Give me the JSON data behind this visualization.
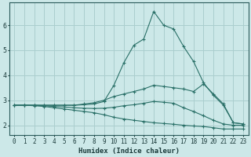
{
  "xlabel": "Humidex (Indice chaleur)",
  "bg_color": "#cce8e8",
  "grid_color": "#aacece",
  "line_color": "#2a7068",
  "xlim": [
    -0.5,
    23.5
  ],
  "ylim": [
    1.6,
    6.9
  ],
  "xticks": [
    0,
    1,
    2,
    3,
    4,
    5,
    6,
    7,
    8,
    9,
    10,
    11,
    12,
    13,
    14,
    15,
    16,
    17,
    18,
    19,
    20,
    21,
    22,
    23
  ],
  "yticks": [
    2,
    3,
    4,
    5,
    6
  ],
  "series": [
    {
      "x": [
        0,
        1,
        2,
        3,
        4,
        5,
        6,
        7,
        8,
        9,
        10,
        11,
        12,
        13,
        14,
        15,
        16,
        17,
        18,
        19,
        20,
        21,
        22,
        23
      ],
      "y": [
        2.8,
        2.8,
        2.8,
        2.8,
        2.8,
        2.8,
        2.8,
        2.82,
        2.85,
        2.95,
        3.6,
        4.5,
        5.2,
        5.45,
        6.55,
        6.0,
        5.85,
        5.15,
        4.55,
        3.7,
        3.2,
        2.8,
        2.1,
        2.05
      ]
    },
    {
      "x": [
        0,
        1,
        2,
        3,
        4,
        5,
        6,
        7,
        8,
        9,
        10,
        11,
        12,
        13,
        14,
        15,
        16,
        17,
        18,
        19,
        20,
        21,
        22,
        23
      ],
      "y": [
        2.8,
        2.8,
        2.8,
        2.8,
        2.8,
        2.8,
        2.8,
        2.85,
        2.9,
        3.0,
        3.15,
        3.25,
        3.35,
        3.45,
        3.6,
        3.55,
        3.5,
        3.45,
        3.35,
        3.65,
        3.25,
        2.85,
        2.1,
        2.05
      ]
    },
    {
      "x": [
        0,
        1,
        2,
        3,
        4,
        5,
        6,
        7,
        8,
        9,
        10,
        11,
        12,
        13,
        14,
        15,
        16,
        17,
        18,
        19,
        20,
        21,
        22,
        23
      ],
      "y": [
        2.8,
        2.8,
        2.8,
        2.78,
        2.75,
        2.73,
        2.7,
        2.68,
        2.67,
        2.68,
        2.72,
        2.78,
        2.82,
        2.88,
        2.95,
        2.92,
        2.88,
        2.7,
        2.55,
        2.38,
        2.2,
        2.05,
        2.0,
        2.0
      ]
    },
    {
      "x": [
        0,
        1,
        2,
        3,
        4,
        5,
        6,
        7,
        8,
        9,
        10,
        11,
        12,
        13,
        14,
        15,
        16,
        17,
        18,
        19,
        20,
        21,
        22,
        23
      ],
      "y": [
        2.8,
        2.8,
        2.78,
        2.75,
        2.7,
        2.65,
        2.6,
        2.55,
        2.5,
        2.42,
        2.32,
        2.25,
        2.2,
        2.15,
        2.1,
        2.07,
        2.04,
        2.0,
        1.97,
        1.95,
        1.9,
        1.85,
        1.85,
        1.85
      ]
    }
  ]
}
